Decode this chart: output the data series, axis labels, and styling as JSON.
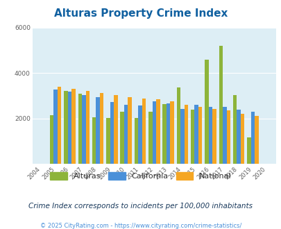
{
  "title": "Alturas Property Crime Index",
  "years": [
    2004,
    2005,
    2006,
    2007,
    2008,
    2009,
    2010,
    2011,
    2012,
    2013,
    2014,
    2015,
    2016,
    2017,
    2018,
    2019,
    2020
  ],
  "alturas": [
    0,
    2150,
    3200,
    3100,
    2050,
    2030,
    2280,
    2020,
    2290,
    2640,
    3360,
    2380,
    4580,
    5200,
    3020,
    1150,
    0
  ],
  "california": [
    0,
    3280,
    3180,
    3020,
    2940,
    2720,
    2610,
    2570,
    2740,
    2660,
    2420,
    2590,
    2500,
    2490,
    2370,
    2280,
    0
  ],
  "national": [
    0,
    3380,
    3290,
    3200,
    3130,
    3010,
    2940,
    2880,
    2840,
    2760,
    2610,
    2490,
    2410,
    2360,
    2210,
    2100,
    0
  ],
  "alturas_color": "#8db43a",
  "california_color": "#4a90d9",
  "national_color": "#f5a623",
  "bg_color": "#ddeef5",
  "ylim": [
    0,
    6000
  ],
  "yticks": [
    0,
    2000,
    4000,
    6000
  ],
  "subtitle": "Crime Index corresponds to incidents per 100,000 inhabitants",
  "footer": "© 2025 CityRating.com - https://www.cityrating.com/crime-statistics/",
  "legend_labels": [
    "Alturas",
    "California",
    "National"
  ],
  "title_color": "#1060a0",
  "subtitle_color": "#1a3a5c",
  "footer_color": "#4a90d9"
}
